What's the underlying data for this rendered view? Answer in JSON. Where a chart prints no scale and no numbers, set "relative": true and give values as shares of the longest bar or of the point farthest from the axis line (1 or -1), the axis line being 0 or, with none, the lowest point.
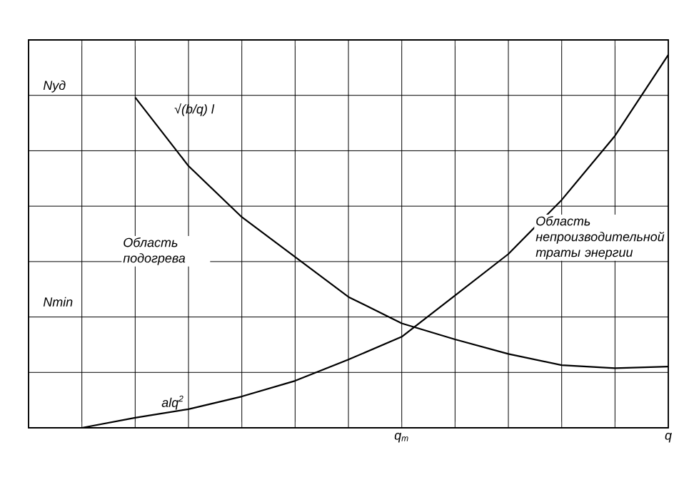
{
  "chart_data": {
    "type": "line",
    "relative": true,
    "grid": true,
    "marker": "none",
    "line_style": "solid",
    "categories": [
      null,
      null,
      null,
      null,
      null,
      null,
      null,
      "q$_{m}$",
      null,
      null,
      null,
      null,
      "q"
    ],
    "series": [
      {
        "name": "√(b/q) l",
        "color": "#000000",
        "values": [
          null,
          null,
          0.886,
          0.702,
          0.565,
          0.458,
          0.351,
          0.28,
          0.237,
          0.198,
          0.168,
          0.16,
          0.164
        ]
      },
      {
        "name": "alq$^{2}$",
        "color": "#000000",
        "values": [
          null,
          0,
          0.027,
          0.05,
          0.084,
          0.126,
          0.183,
          0.244,
          0.355,
          0.466,
          0.611,
          0.783,
          1
        ]
      }
    ],
    "annotations": [
      "Nуд",
      "Nmin",
      "Область подогрева",
      "Область непроизводительной траты энергии"
    ]
  }
}
